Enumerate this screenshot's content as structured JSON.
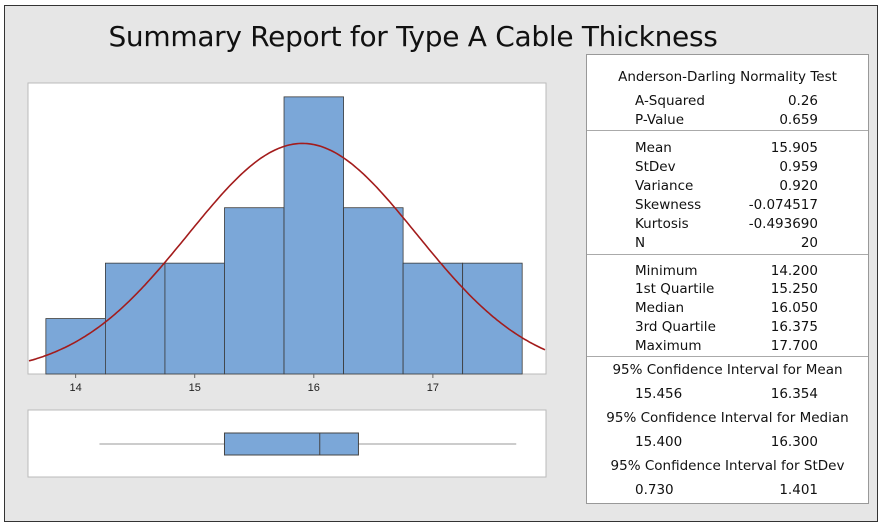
{
  "title": "Summary Report for Type A Cable Thickness",
  "chart_data": [
    {
      "type": "bar",
      "name": "histogram",
      "bin_centers": [
        14.0,
        14.5,
        15.0,
        15.5,
        16.0,
        16.5,
        17.0,
        17.5
      ],
      "bin_width": 0.5,
      "values": [
        1,
        2,
        2,
        3,
        5,
        3,
        2,
        2
      ],
      "xlim": [
        13.6,
        17.95
      ],
      "ylim": [
        0,
        5.25
      ],
      "x_ticks": [
        "14",
        "15",
        "16",
        "17"
      ],
      "x_tick_values": [
        14,
        15,
        16,
        17
      ],
      "fit_curve": {
        "type": "normal",
        "mean": 15.905,
        "stdev": 0.959,
        "n": 20
      },
      "colors": {
        "bar": "#7ba7d8",
        "bar_edge": "#3a3a3a",
        "curve": "#a31c1c"
      }
    },
    {
      "type": "boxplot",
      "name": "boxplot",
      "min": 14.2,
      "q1": 15.25,
      "median": 16.05,
      "q3": 16.375,
      "max": 17.7
    }
  ],
  "stats": {
    "ad_title": "Anderson-Darling Normality Test",
    "ad": [
      {
        "label": "A-Squared",
        "value": "0.26"
      },
      {
        "label": "P-Value",
        "value": "0.659"
      }
    ],
    "moments": [
      {
        "label": "Mean",
        "value": "15.905"
      },
      {
        "label": "StDev",
        "value": "0.959"
      },
      {
        "label": "Variance",
        "value": "0.920"
      },
      {
        "label": "Skewness",
        "value": "-0.074517"
      },
      {
        "label": "Kurtosis",
        "value": "-0.493690"
      },
      {
        "label": "N",
        "value": "20"
      }
    ],
    "quantiles": [
      {
        "label": "Minimum",
        "value": "14.200"
      },
      {
        "label": "1st Quartile",
        "value": "15.250"
      },
      {
        "label": "Median",
        "value": "16.050"
      },
      {
        "label": "3rd Quartile",
        "value": "16.375"
      },
      {
        "label": "Maximum",
        "value": "17.700"
      }
    ],
    "ci": [
      {
        "title": "95% Confidence Interval for Mean",
        "low": "15.456",
        "high": "16.354"
      },
      {
        "title": "95% Confidence Interval for Median",
        "low": "15.400",
        "high": "16.300"
      },
      {
        "title": "95% Confidence Interval for StDev",
        "low": "0.730",
        "high": "1.401"
      }
    ]
  }
}
